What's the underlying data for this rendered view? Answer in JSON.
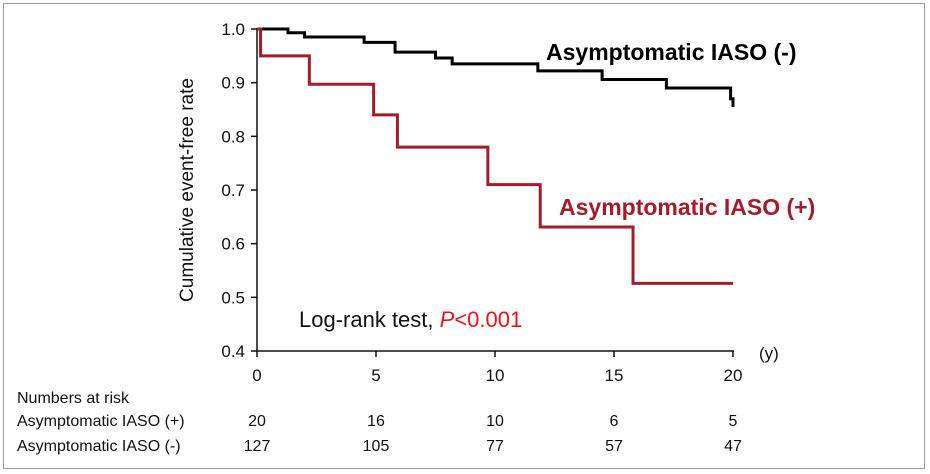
{
  "chart_data": {
    "type": "line",
    "ylabel": "Cumulative event-free rate",
    "xunit": "(y)",
    "xlim": [
      0,
      20
    ],
    "ylim": [
      0.4,
      1.0
    ],
    "xticks": [
      "0",
      "5",
      "10",
      "15",
      "20"
    ],
    "yticks": [
      "0.4",
      "0.5",
      "0.6",
      "0.7",
      "0.8",
      "0.9",
      "1.0"
    ],
    "grid": false,
    "series": [
      {
        "name": "Asymptomatic IASO (-)",
        "color": "#000000",
        "steps": [
          [
            0,
            1.0
          ],
          [
            1.3,
            0.993
          ],
          [
            2.0,
            0.985
          ],
          [
            4.5,
            0.975
          ],
          [
            5.8,
            0.957
          ],
          [
            7.5,
            0.946
          ],
          [
            8.2,
            0.935
          ],
          [
            11.8,
            0.922
          ],
          [
            14.5,
            0.906
          ],
          [
            17.2,
            0.89
          ],
          [
            19.9,
            0.87
          ],
          [
            20.0,
            0.855
          ]
        ],
        "end": 20.0
      },
      {
        "name": "Asymptomatic IASO (+)",
        "color": "#a31c2a",
        "steps": [
          [
            0,
            1.0
          ],
          [
            0.15,
            0.95
          ],
          [
            2.2,
            0.897
          ],
          [
            4.9,
            0.84
          ],
          [
            5.9,
            0.78
          ],
          [
            9.7,
            0.71
          ],
          [
            11.9,
            0.631
          ],
          [
            15.8,
            0.526
          ]
        ],
        "end": 20.0
      }
    ],
    "annotation": {
      "text": "Log-rank test, ",
      "p_label": "P",
      "p_value": "<0.001",
      "p_color": "#e8141c"
    },
    "risk_table": {
      "title": "Numbers at risk",
      "rows": [
        {
          "label": "Asymptomatic IASO (+)",
          "values": [
            "20",
            "16",
            "10",
            "6",
            "5"
          ]
        },
        {
          "label": "Asymptomatic IASO (-)",
          "values": [
            "127",
            "105",
            "77",
            "57",
            "47"
          ]
        }
      ]
    }
  }
}
